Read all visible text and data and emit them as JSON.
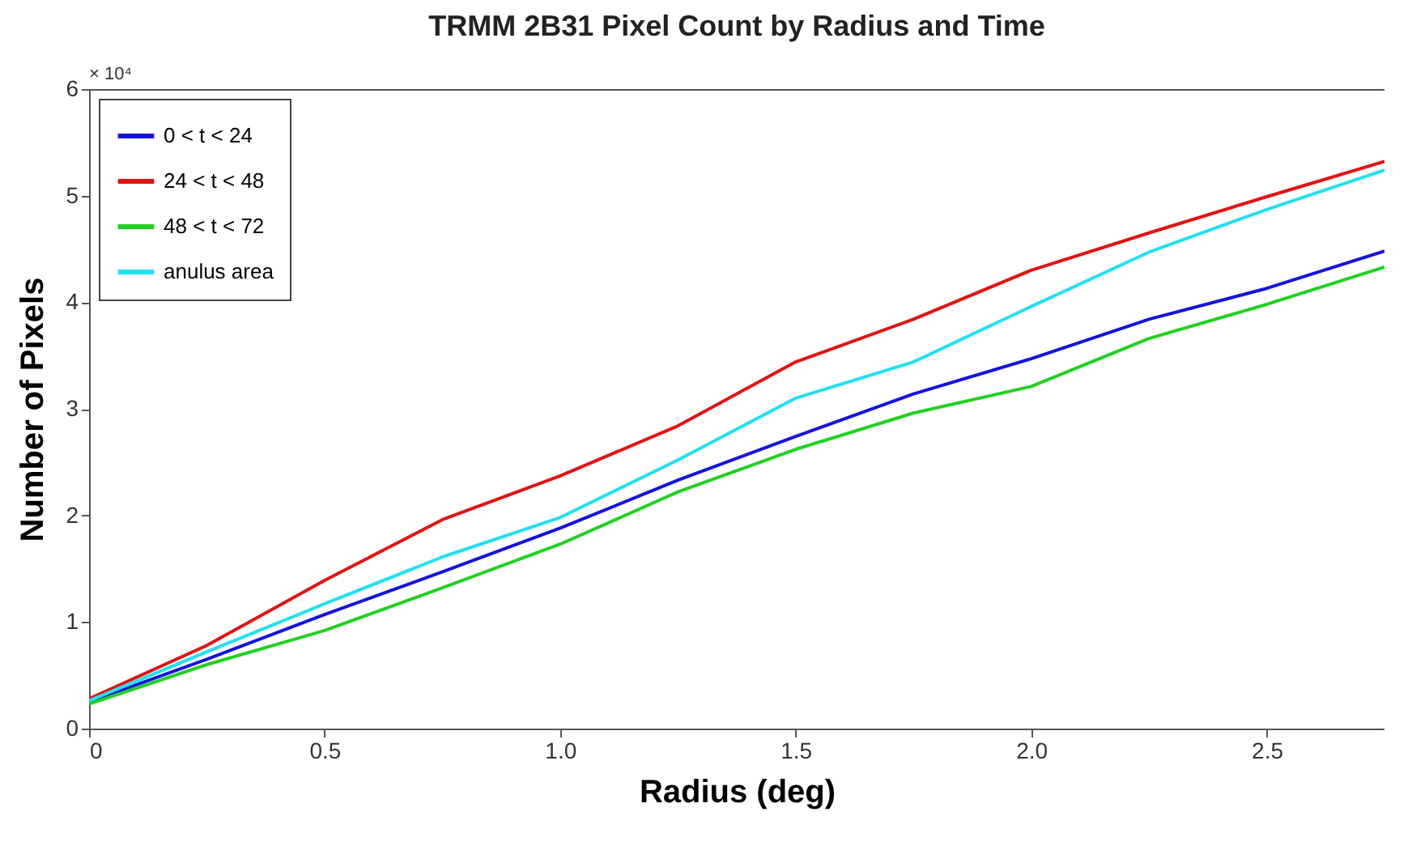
{
  "chart_data": {
    "type": "line",
    "title": "TRMM 2B31 Pixel Count by Radius and Time",
    "xlabel": "Radius (deg)",
    "ylabel": "Number of Pixels",
    "annotations": [
      "× 10⁴"
    ],
    "x": [
      0,
      0.25,
      0.5,
      0.75,
      1.0,
      1.25,
      1.5,
      1.75,
      2.0,
      2.25,
      2.5,
      2.75
    ],
    "series": [
      {
        "name": "0 < t < 24",
        "color": "#1414dc",
        "values": [
          0.25,
          0.65,
          1.07,
          1.47,
          1.88,
          2.33,
          2.74,
          3.14,
          3.47,
          3.84,
          4.13,
          4.48
        ]
      },
      {
        "name": "24 < t < 48",
        "color": "#e01414",
        "values": [
          0.28,
          0.78,
          1.39,
          1.96,
          2.37,
          2.84,
          3.44,
          3.84,
          4.3,
          4.65,
          4.99,
          5.32
        ]
      },
      {
        "name": "48 < t < 72",
        "color": "#22d022",
        "values": [
          0.23,
          0.6,
          0.92,
          1.32,
          1.73,
          2.22,
          2.62,
          2.96,
          3.21,
          3.66,
          3.98,
          4.33
        ]
      },
      {
        "name": "anulus area",
        "color": "#22e0f0",
        "values": [
          0.26,
          0.72,
          1.17,
          1.61,
          1.98,
          2.52,
          3.1,
          3.44,
          3.96,
          4.47,
          4.87,
          5.24
        ]
      }
    ],
    "xlim": [
      0,
      2.75
    ],
    "ylim": [
      0,
      6
    ],
    "xticks": [
      0,
      0.5,
      {
        "value": 1,
        "label": "1.0"
      },
      1.5,
      {
        "value": 2,
        "label": "2.0"
      },
      2.5
    ],
    "yticks": [
      0,
      1,
      2,
      3,
      4,
      5,
      6
    ],
    "legend": "top left",
    "grid": false
  }
}
